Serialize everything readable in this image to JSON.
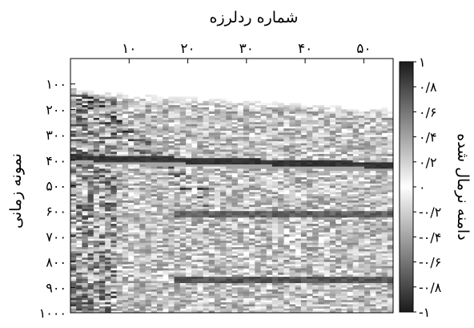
{
  "chart_data": {
    "type": "heatmap",
    "title": "",
    "xlabel": "شماره ردلرزه",
    "ylabel": "نمونه زمانی",
    "colorbar_label": "دامنه نرمال شده",
    "x_ticks": [
      {
        "value": 10,
        "label": "۱۰"
      },
      {
        "value": 20,
        "label": "۲۰"
      },
      {
        "value": 30,
        "label": "۳۰"
      },
      {
        "value": 40,
        "label": "۴۰"
      },
      {
        "value": 50,
        "label": "۵۰"
      }
    ],
    "y_ticks": [
      {
        "value": 100,
        "label": "۱۰۰"
      },
      {
        "value": 200,
        "label": "۲۰۰"
      },
      {
        "value": 300,
        "label": "۳۰۰"
      },
      {
        "value": 400,
        "label": "۴۰۰"
      },
      {
        "value": 500,
        "label": "۵۰۰"
      },
      {
        "value": 600,
        "label": "۶۰۰"
      },
      {
        "value": 700,
        "label": "۷۰۰"
      },
      {
        "value": 800,
        "label": "۸۰۰"
      },
      {
        "value": 900,
        "label": "۹۰۰"
      },
      {
        "value": 1000,
        "label": "۱۰۰۰"
      }
    ],
    "colorbar_ticks": [
      {
        "value": 1,
        "label": "۱"
      },
      {
        "value": 0.8,
        "label": "۰/۸"
      },
      {
        "value": 0.6,
        "label": "۰/۶"
      },
      {
        "value": 0.4,
        "label": "۰/۴"
      },
      {
        "value": 0.2,
        "label": "۰/۲"
      },
      {
        "value": 0,
        "label": "۰"
      },
      {
        "value": -0.2,
        "label": "-۰/۲"
      },
      {
        "value": -0.4,
        "label": "-۰/۴"
      },
      {
        "value": -0.6,
        "label": "-۰/۶"
      },
      {
        "value": -0.8,
        "label": "-۰/۸"
      },
      {
        "value": -1,
        "label": "-۱"
      }
    ],
    "xlim": [
      0,
      55
    ],
    "ylim": [
      0,
      1000
    ],
    "clim": [
      -1,
      1
    ],
    "colormap": "gray",
    "x_axis_position": "top",
    "y_axis_reversed": true,
    "grid": false,
    "data_summary": {
      "first_break_start_sample": 120,
      "first_break_end_sample": 190,
      "strong_reflector_start_sample": 390,
      "strong_reflector_end_sample": 420,
      "bands": [
        {
          "start_sample": 600,
          "end_sample": 625,
          "amplitude": -0.7
        },
        {
          "start_sample": 860,
          "end_sample": 880,
          "amplitude": -0.75
        }
      ]
    }
  }
}
